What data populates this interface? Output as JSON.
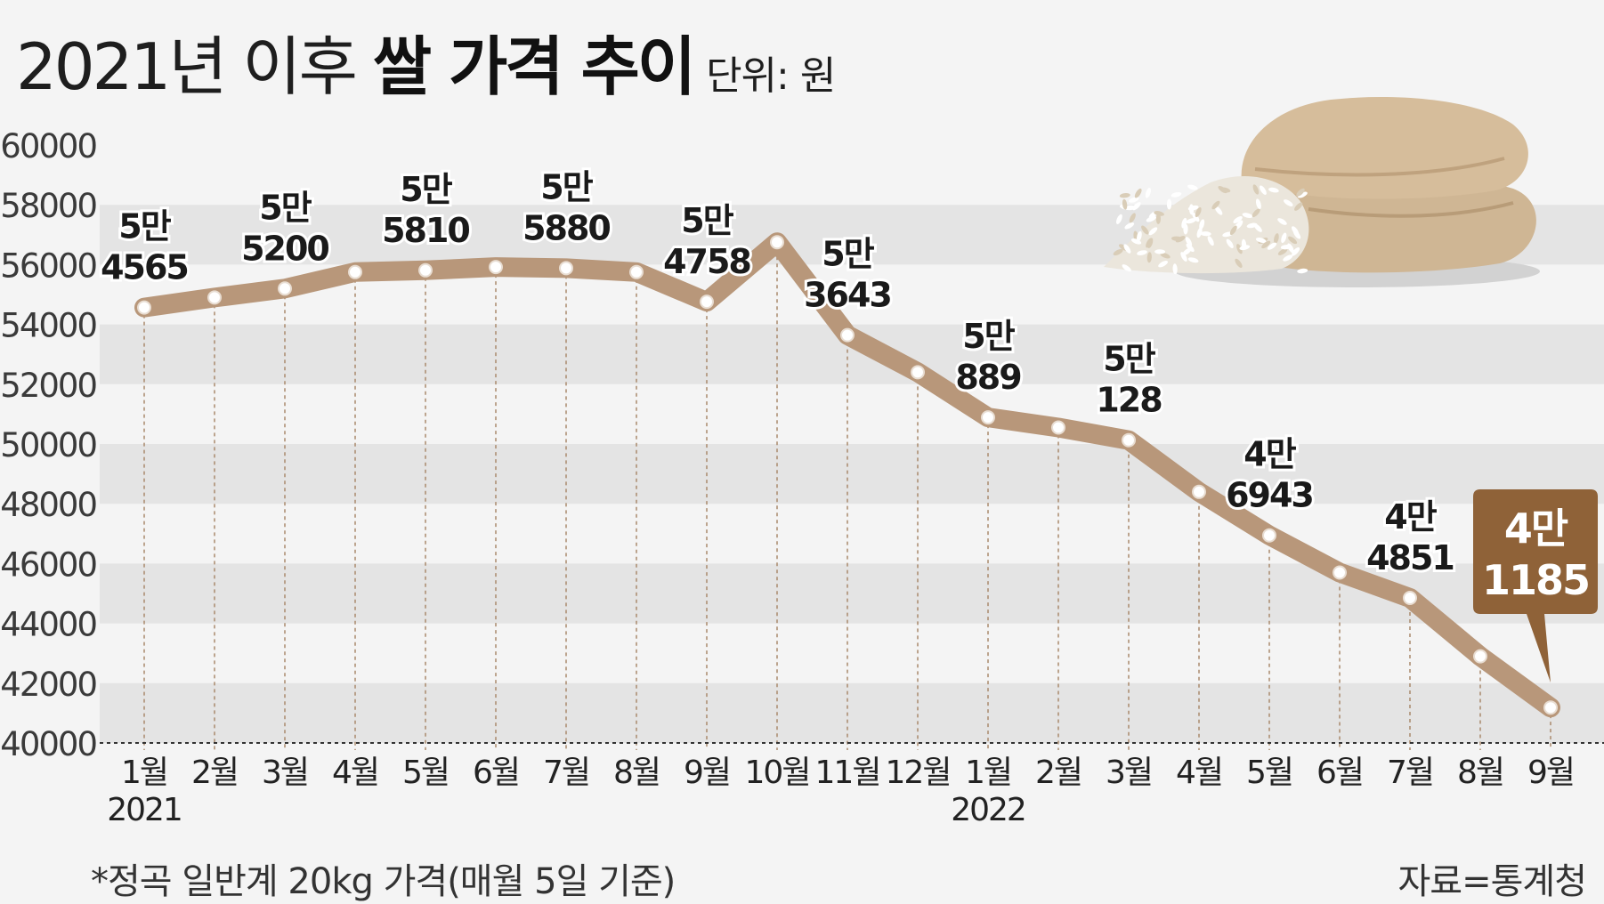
{
  "title": {
    "light": "2021년 이후 ",
    "bold": "쌀 가격 추이",
    "unit": "단위: 원"
  },
  "footnote": "*정곡 일반계 20kg 가격(매월 5일 기준)",
  "source": "자료=통계청",
  "colors": {
    "line": "#b8977a",
    "marker": "#ffffff",
    "band": "#e4e4e4",
    "callout": "#8f6238",
    "text": "#1a1a1a"
  },
  "chart_data": {
    "type": "line",
    "categories": [
      "1월",
      "2월",
      "3월",
      "4월",
      "5월",
      "6월",
      "7월",
      "8월",
      "9월",
      "10월",
      "11월",
      "12월",
      "1월",
      "2월",
      "3월",
      "4월",
      "5월",
      "6월",
      "7월",
      "8월",
      "9월"
    ],
    "year_labels": [
      {
        "index": 0,
        "label": "2021"
      },
      {
        "index": 12,
        "label": "2022"
      }
    ],
    "values": [
      54565,
      54900,
      55200,
      55750,
      55810,
      55920,
      55880,
      55750,
      54758,
      56750,
      53643,
      52400,
      50889,
      50550,
      50128,
      48400,
      46943,
      45700,
      44851,
      42900,
      41185
    ],
    "data_labels": [
      {
        "index": 0,
        "line1": "5만",
        "line2": "4565"
      },
      {
        "index": 2,
        "line1": "5만",
        "line2": "5200"
      },
      {
        "index": 4,
        "line1": "5만",
        "line2": "5810"
      },
      {
        "index": 6,
        "line1": "5만",
        "line2": "5880"
      },
      {
        "index": 8,
        "line1": "5만",
        "line2": "4758"
      },
      {
        "index": 10,
        "line1": "5만",
        "line2": "3643"
      },
      {
        "index": 12,
        "line1": "5만",
        "line2": "889"
      },
      {
        "index": 14,
        "line1": "5만",
        "line2": "128"
      },
      {
        "index": 16,
        "line1": "4만",
        "line2": "6943"
      },
      {
        "index": 18,
        "line1": "4만",
        "line2": "4851"
      }
    ],
    "callout": {
      "index": 20,
      "line1": "4만",
      "line2": "1185"
    },
    "ylim": [
      40000,
      60000
    ],
    "yticks": [
      40000,
      42000,
      44000,
      46000,
      48000,
      50000,
      52000,
      54000,
      56000,
      58000,
      60000
    ],
    "grid": "alternating horizontal bands"
  }
}
